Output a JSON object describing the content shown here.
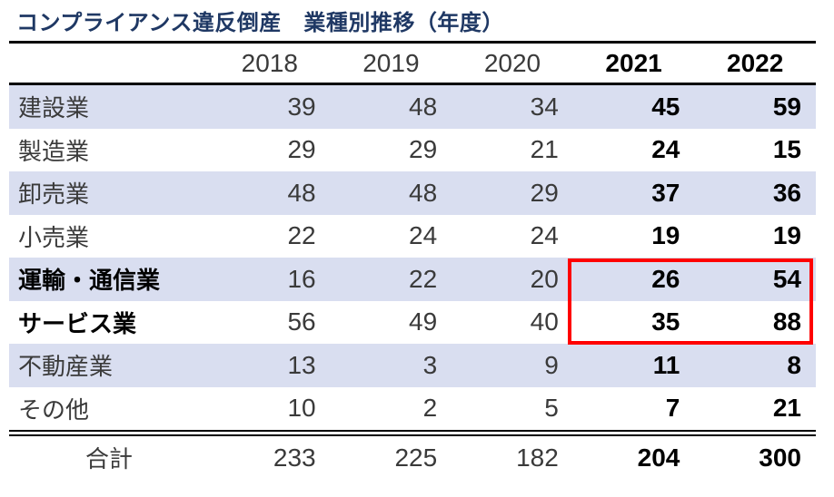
{
  "colors": {
    "title_text": "#1F3864",
    "row_shade": "#D9DEF0",
    "highlight_border": "#FF0000",
    "regular_text": "#3A3A3A",
    "emphasis_text": "#000000"
  },
  "chart_data": {
    "type": "table",
    "title": "コンプライアンス違反倒産　業種別推移（年度）",
    "columns": [
      "",
      "2018",
      "2019",
      "2020",
      "2021",
      "2022"
    ],
    "bold_columns": [
      "2021",
      "2022"
    ],
    "rows": [
      {
        "label": "建設業",
        "values": [
          39,
          48,
          34,
          45,
          59
        ]
      },
      {
        "label": "製造業",
        "values": [
          29,
          29,
          21,
          24,
          15
        ]
      },
      {
        "label": "卸売業",
        "values": [
          48,
          48,
          29,
          37,
          36
        ]
      },
      {
        "label": "小売業",
        "values": [
          22,
          24,
          24,
          19,
          19
        ]
      },
      {
        "label": "運輸・通信業",
        "values": [
          16,
          22,
          20,
          26,
          54
        ]
      },
      {
        "label": "サービス業",
        "values": [
          56,
          49,
          40,
          35,
          88
        ]
      },
      {
        "label": "不動産業",
        "values": [
          13,
          3,
          9,
          11,
          8
        ]
      },
      {
        "label": "その他",
        "values": [
          10,
          2,
          5,
          7,
          21
        ]
      }
    ],
    "bold_label_rows": [
      "運輸・通信業",
      "サービス業"
    ],
    "shaded_rows": [
      "建設業",
      "卸売業",
      "運輸・通信業",
      "不動産業"
    ],
    "total_row": {
      "label": "合計",
      "values": [
        233,
        225,
        182,
        204,
        300
      ]
    },
    "highlight_box": {
      "row_labels": [
        "運輸・通信業",
        "サービス業"
      ],
      "columns": [
        "2021",
        "2022"
      ],
      "values": [
        [
          26,
          54
        ],
        [
          35,
          88
        ]
      ],
      "border_color": "#FF0000"
    }
  }
}
